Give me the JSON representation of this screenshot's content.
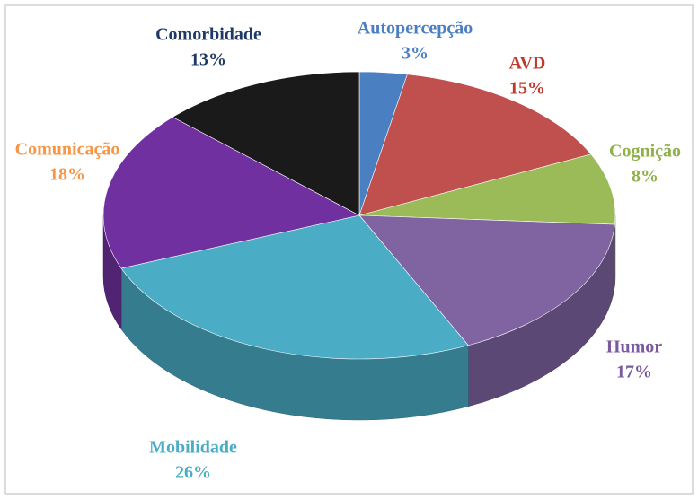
{
  "chart_data": {
    "type": "pie3d",
    "categories": [
      "Autopercepção",
      "AVD",
      "Cognição",
      "Humor",
      "Mobilidade",
      "Comunicação",
      "Comorbidade"
    ],
    "values": [
      3,
      15,
      8,
      17,
      26,
      18,
      13
    ],
    "value_labels": [
      "3%",
      "15%",
      "8%",
      "17%",
      "26%",
      "18%",
      "13%"
    ],
    "colors": [
      "#4a7fc1",
      "#c0504d",
      "#9bbb59",
      "#8064a2",
      "#4bacc6",
      "#7030a0",
      "#1a1a1a"
    ],
    "label_colors": [
      "#4a7fc1",
      "#c0392b",
      "#8fb04a",
      "#7a5a9c",
      "#4bacc6",
      "#f79646",
      "#1f3864"
    ]
  }
}
